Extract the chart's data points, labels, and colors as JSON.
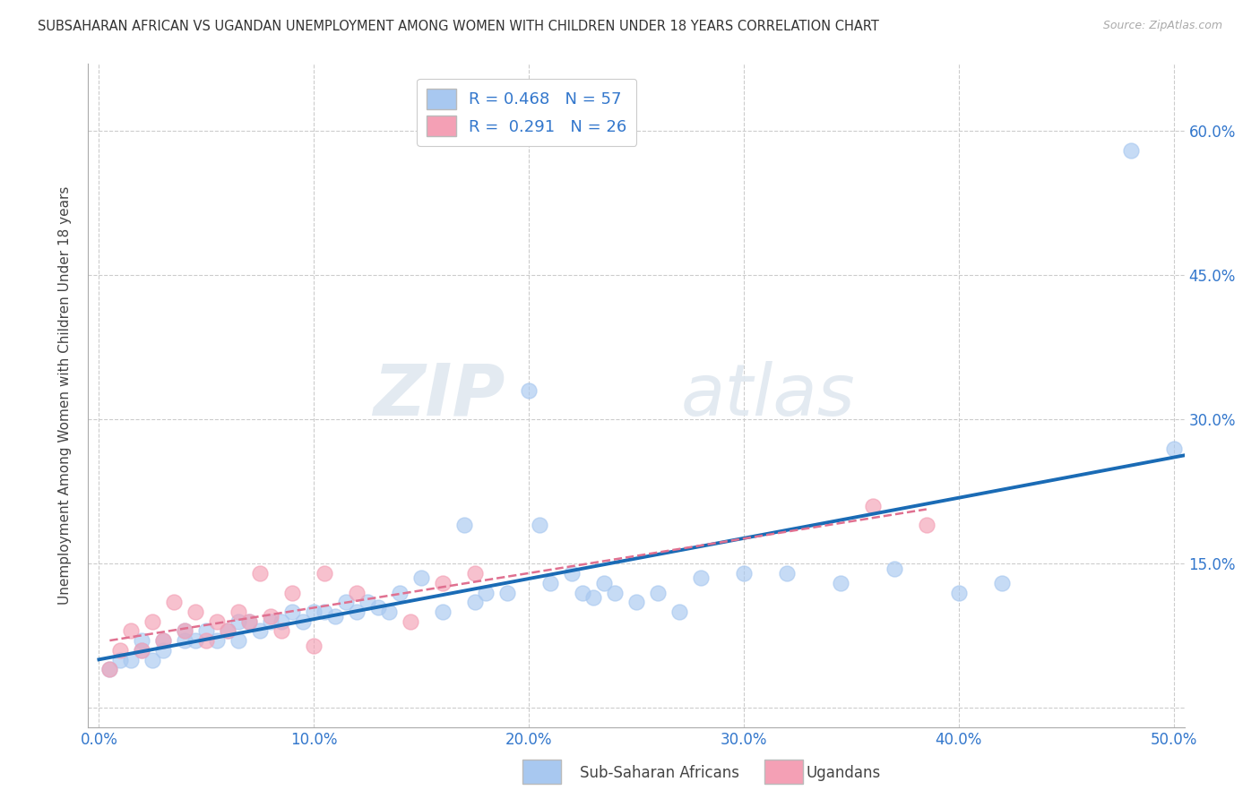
{
  "title": "SUBSAHARAN AFRICAN VS UGANDAN UNEMPLOYMENT AMONG WOMEN WITH CHILDREN UNDER 18 YEARS CORRELATION CHART",
  "source": "Source: ZipAtlas.com",
  "ylabel_label": "Unemployment Among Women with Children Under 18 years",
  "legend_label1": "Sub-Saharan Africans",
  "legend_label2": "Ugandans",
  "R1": 0.468,
  "N1": 57,
  "R2": 0.291,
  "N2": 26,
  "xlim": [
    -0.005,
    0.505
  ],
  "ylim": [
    -0.02,
    0.67
  ],
  "xticks": [
    0.0,
    0.1,
    0.2,
    0.3,
    0.4,
    0.5
  ],
  "yticks": [
    0.0,
    0.15,
    0.3,
    0.45,
    0.6
  ],
  "ytick_labels": [
    "",
    "15.0%",
    "30.0%",
    "45.0%",
    "60.0%"
  ],
  "xtick_labels": [
    "0.0%",
    "10.0%",
    "20.0%",
    "30.0%",
    "40.0%",
    "50.0%"
  ],
  "color_blue": "#A8C8F0",
  "color_pink": "#F4A0B5",
  "line_blue": "#1A6BB5",
  "line_pink": "#E07090",
  "background": "#FFFFFF",
  "watermark_zip": "ZIP",
  "watermark_atlas": "atlas",
  "blue_points_x": [
    0.005,
    0.01,
    0.015,
    0.02,
    0.02,
    0.025,
    0.03,
    0.03,
    0.04,
    0.04,
    0.045,
    0.05,
    0.055,
    0.06,
    0.065,
    0.065,
    0.07,
    0.075,
    0.08,
    0.085,
    0.09,
    0.095,
    0.1,
    0.105,
    0.11,
    0.115,
    0.12,
    0.125,
    0.13,
    0.135,
    0.14,
    0.15,
    0.16,
    0.17,
    0.175,
    0.18,
    0.19,
    0.2,
    0.205,
    0.21,
    0.22,
    0.225,
    0.23,
    0.235,
    0.24,
    0.25,
    0.26,
    0.27,
    0.28,
    0.3,
    0.32,
    0.345,
    0.37,
    0.4,
    0.42,
    0.48,
    0.5
  ],
  "blue_points_y": [
    0.04,
    0.05,
    0.05,
    0.06,
    0.07,
    0.05,
    0.06,
    0.07,
    0.07,
    0.08,
    0.07,
    0.08,
    0.07,
    0.08,
    0.07,
    0.09,
    0.09,
    0.08,
    0.09,
    0.09,
    0.1,
    0.09,
    0.1,
    0.1,
    0.095,
    0.11,
    0.1,
    0.11,
    0.105,
    0.1,
    0.12,
    0.135,
    0.1,
    0.19,
    0.11,
    0.12,
    0.12,
    0.33,
    0.19,
    0.13,
    0.14,
    0.12,
    0.115,
    0.13,
    0.12,
    0.11,
    0.12,
    0.1,
    0.135,
    0.14,
    0.14,
    0.13,
    0.145,
    0.12,
    0.13,
    0.58,
    0.27
  ],
  "pink_points_x": [
    0.005,
    0.01,
    0.015,
    0.02,
    0.025,
    0.03,
    0.035,
    0.04,
    0.045,
    0.05,
    0.055,
    0.06,
    0.065,
    0.07,
    0.075,
    0.08,
    0.085,
    0.09,
    0.1,
    0.105,
    0.12,
    0.145,
    0.16,
    0.175,
    0.36,
    0.385
  ],
  "pink_points_y": [
    0.04,
    0.06,
    0.08,
    0.06,
    0.09,
    0.07,
    0.11,
    0.08,
    0.1,
    0.07,
    0.09,
    0.08,
    0.1,
    0.09,
    0.14,
    0.095,
    0.08,
    0.12,
    0.065,
    0.14,
    0.12,
    0.09,
    0.13,
    0.14,
    0.21,
    0.19
  ]
}
